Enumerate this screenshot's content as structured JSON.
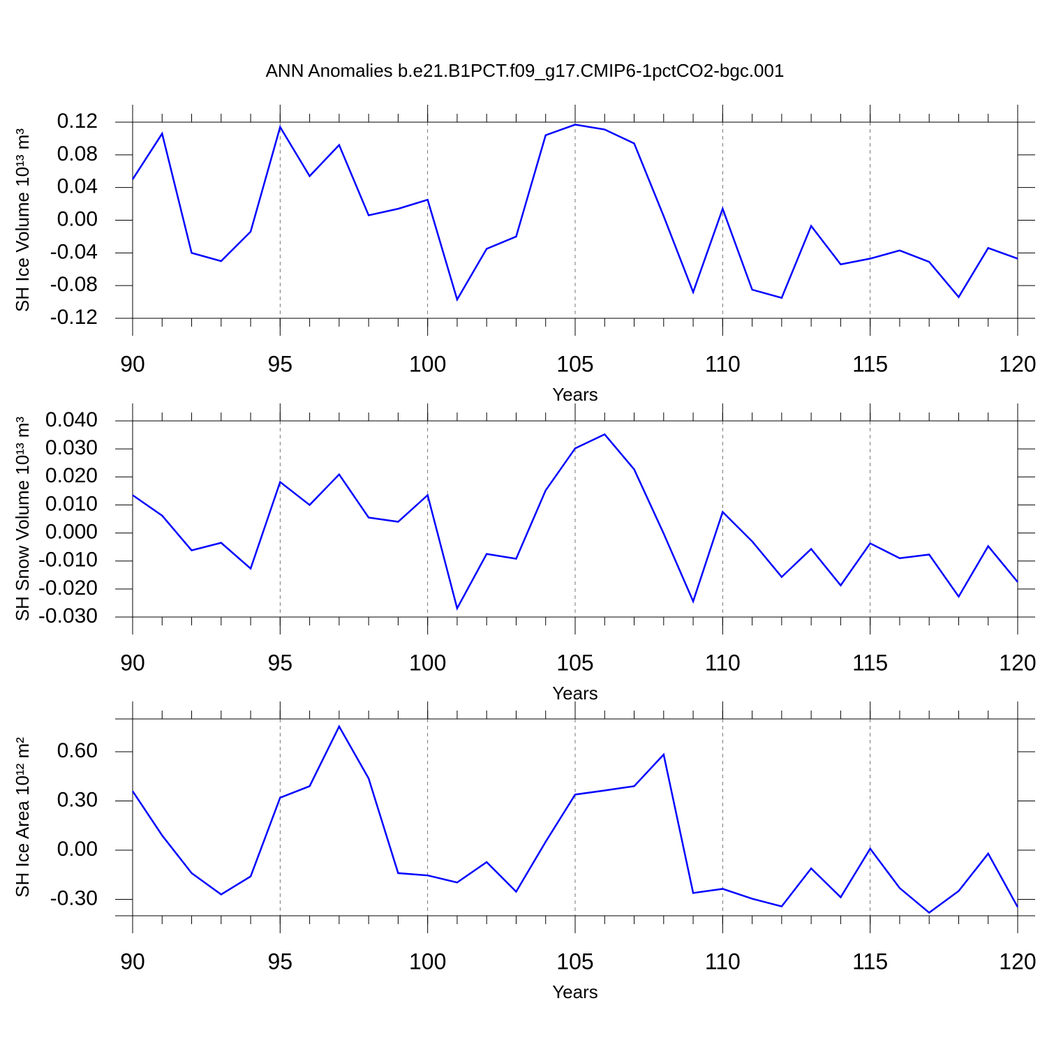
{
  "title": "ANN Anomalies b.e21.B1PCT.f09_g17.CMIP6-1pctCO2-bgc.001",
  "chart_data": [
    {
      "type": "line",
      "xlabel": "Years",
      "ylabel": "SH Ice Volume 10¹³ m³",
      "x": [
        90,
        91,
        92,
        93,
        94,
        95,
        96,
        97,
        98,
        99,
        100,
        101,
        102,
        103,
        104,
        105,
        106,
        107,
        108,
        109,
        110,
        111,
        112,
        113,
        114,
        115,
        116,
        117,
        118,
        119,
        120
      ],
      "series": [
        {
          "color": "#0000ff",
          "values": [
            0.05,
            0.106,
            -0.04,
            -0.05,
            -0.014,
            0.114,
            0.054,
            0.092,
            0.006,
            0.014,
            0.025,
            -0.097,
            -0.035,
            -0.02,
            0.104,
            0.117,
            0.111,
            0.094,
            0.005,
            -0.088,
            0.014,
            -0.085,
            -0.095,
            -0.007,
            -0.054,
            -0.047,
            -0.037,
            -0.051,
            -0.094,
            -0.034,
            -0.047
          ]
        }
      ],
      "xlim": [
        90,
        120
      ],
      "xticks": [
        90,
        95,
        100,
        105,
        110,
        115,
        120
      ],
      "ylim": [
        -0.12,
        0.12
      ],
      "yticks": [
        0.12,
        0.08,
        0.04,
        {
          "value": 0,
          "label": "0.00"
        },
        -0.04,
        -0.08,
        -0.12
      ],
      "xgrid": true
    },
    {
      "type": "line",
      "xlabel": "Years",
      "ylabel": "SH Snow Volume 10¹³ m³",
      "x": [
        90,
        91,
        92,
        93,
        94,
        95,
        96,
        97,
        98,
        99,
        100,
        101,
        102,
        103,
        104,
        105,
        106,
        107,
        108,
        109,
        110,
        111,
        112,
        113,
        114,
        115,
        116,
        117,
        118,
        119,
        120
      ],
      "series": [
        {
          "color": "#0000ff",
          "values": [
            0.0135,
            0.0062,
            -0.0062,
            -0.0035,
            -0.0127,
            0.0182,
            0.01,
            0.0209,
            0.0055,
            0.004,
            0.0135,
            -0.0269,
            -0.0075,
            -0.0092,
            0.0152,
            0.0302,
            0.0352,
            0.0227,
            -0.0002,
            -0.0244,
            0.0075,
            -0.003,
            -0.0157,
            -0.0057,
            -0.0187,
            -0.0037,
            -0.009,
            -0.0077,
            -0.0227,
            -0.0047,
            -0.0175
          ]
        }
      ],
      "xlim": [
        90,
        120
      ],
      "xticks": [
        90,
        95,
        100,
        105,
        110,
        115,
        120
      ],
      "ylim": [
        -0.03,
        0.04
      ],
      "yticks": [
        {
          "value": 0.04,
          "label": "0.040"
        },
        {
          "value": 0.03,
          "label": "0.030"
        },
        {
          "value": 0.02,
          "label": "0.020"
        },
        {
          "value": 0.01,
          "label": "0.010"
        },
        {
          "value": 0,
          "label": "0.000"
        },
        {
          "value": -0.01,
          "label": "-0.010"
        },
        {
          "value": -0.02,
          "label": "-0.020"
        },
        {
          "value": -0.03,
          "label": "-0.030"
        }
      ],
      "xgrid": true
    },
    {
      "type": "line",
      "xlabel": "Years",
      "ylabel": "SH Ice Area 10¹² m²",
      "x": [
        90,
        91,
        92,
        93,
        94,
        95,
        96,
        97,
        98,
        99,
        100,
        101,
        102,
        103,
        104,
        105,
        106,
        107,
        108,
        109,
        110,
        111,
        112,
        113,
        114,
        115,
        116,
        117,
        118,
        119,
        120
      ],
      "series": [
        {
          "color": "#0000ff",
          "values": [
            0.36,
            0.09,
            -0.14,
            -0.27,
            -0.16,
            0.32,
            0.39,
            0.754,
            0.437,
            -0.14,
            -0.154,
            -0.197,
            -0.073,
            -0.253,
            0.051,
            0.339,
            0.364,
            0.39,
            0.583,
            -0.261,
            -0.236,
            -0.296,
            -0.343,
            -0.111,
            -0.287,
            0.009,
            -0.231,
            -0.381,
            -0.249,
            -0.021,
            -0.347
          ]
        }
      ],
      "xlim": [
        90,
        120
      ],
      "xticks": [
        90,
        95,
        100,
        105,
        110,
        115,
        120
      ],
      "ylim": [
        -0.4,
        0.8
      ],
      "yticks": [
        {
          "value": 0.6,
          "label": "0.60"
        },
        {
          "value": 0.3,
          "label": "0.30"
        },
        {
          "value": 0,
          "label": "0.00"
        },
        {
          "value": -0.3,
          "label": "-0.30"
        }
      ],
      "xgrid": true
    }
  ]
}
